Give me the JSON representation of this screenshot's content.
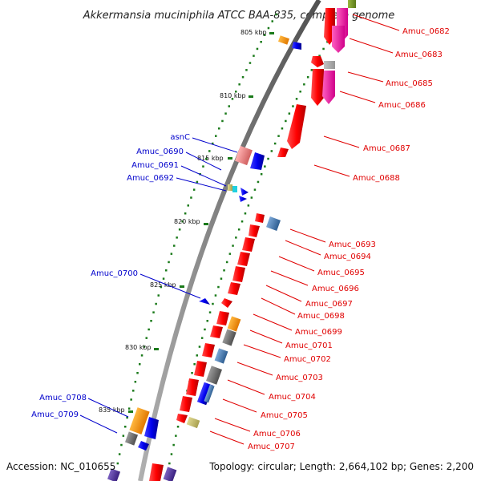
{
  "title": "Akkermansia muciniphila ATCC BAA-835, complete genome",
  "footer": {
    "accession": "Accession: NC_010655",
    "topology": "Topology: circular; Length: 2,664,102 bp; Genes: 2,200"
  },
  "colors": {
    "backbone": "#808080",
    "gc_dots": "#1a7a1a",
    "forward_gene": "#ff0000",
    "reverse_gene": "#0000ee",
    "forward_label": "#e00000",
    "reverse_label": "#0000cc",
    "pink": "#ff1aa0",
    "orange": "#ff9900",
    "steel": "#4a7fb5",
    "grey": "#707070",
    "khaki": "#c8c070",
    "olive": "#7a9a2a",
    "purple": "#5a3fa0",
    "salmon": "#f08080",
    "cyan": "#20d0e0"
  },
  "kbp_ticks": [
    "805 kbp",
    "810 kbp",
    "815 kbp",
    "820 kbp",
    "825 kbp",
    "830 kbp",
    "835 kbp"
  ],
  "forward_labels": [
    "Amuc_0682",
    "Amuc_0683",
    "Amuc_0685",
    "Amuc_0686",
    "Amuc_0687",
    "Amuc_0688",
    "Amuc_0693",
    "Amuc_0694",
    "Amuc_0695",
    "Amuc_0696",
    "Amuc_0697",
    "Amuc_0698",
    "Amuc_0699",
    "Amuc_0701",
    "Amuc_0702",
    "Amuc_0703",
    "Amuc_0704",
    "Amuc_0705",
    "Amuc_0706",
    "Amuc_0707"
  ],
  "reverse_labels": [
    "asnC",
    "Amuc_0690",
    "Amuc_0691",
    "Amuc_0692",
    "Amuc_0700",
    "Amuc_0708",
    "Amuc_0709"
  ]
}
